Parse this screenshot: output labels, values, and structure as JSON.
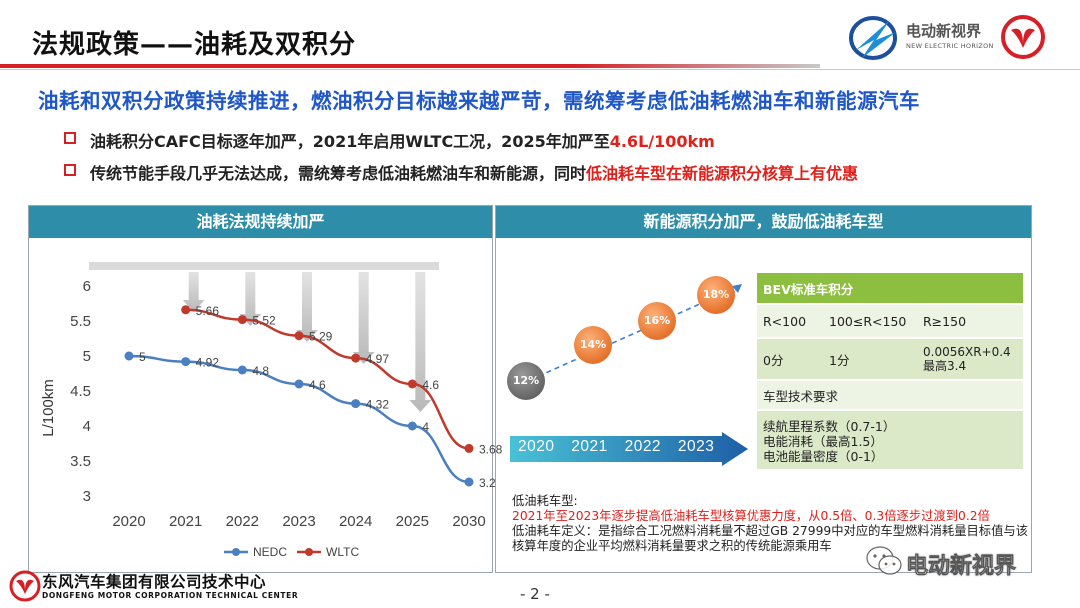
{
  "header": {
    "title": "法规政策——油耗及双积分",
    "ev_logo_text": "电动新视界",
    "ev_logo_sub": "NEW ELECTRIC HORIZON"
  },
  "subtitle": "油耗和双积分政策持续推进，燃油积分目标越来越严苛，需统筹考虑低油耗燃油车和新能源汽车",
  "bullets": [
    {
      "prefix": "油耗积分CAFC目标逐年加严，2021年启用WLTC工况，2025年加严至",
      "highlight": "4.6L/100km"
    },
    {
      "prefix": "传统节能手段几乎无法达成，需统筹考虑低油耗燃油车和新能源，同时",
      "highlight": "低油耗车型在新能源积分核算上有优惠"
    }
  ],
  "left_panel": {
    "title": "油耗法规持续加严"
  },
  "right_panel": {
    "title": "新能源积分加严，鼓励低油耗车型",
    "bubbles": [
      "12%",
      "14%",
      "16%",
      "18%"
    ],
    "years_label": "2020 2021 2022 2023",
    "table": {
      "header": "BEV标准车积分",
      "range_row": [
        "R<100",
        "100≤R<150",
        "R≥150"
      ],
      "value_row": [
        "0分",
        "1分",
        "0.0056XR+0.4\n最高3.4"
      ],
      "req_header": "车型技术要求",
      "req_lines": [
        "续航里程系数（0.7-1）",
        "电能消耗（最高1.5）",
        "电池能量密度（0-1）"
      ]
    },
    "note": {
      "line1": "低油耗车型:",
      "line2_red": "2021年至2023年逐步提高低油耗车型核算优惠力度，从0.5倍、0.3倍逐步过渡到0.2倍",
      "line3": "低油耗车定义：是指综合工况燃料消耗量不超过GB 27999中对应的车型燃料消耗量目标值与该核算年度的企业平均燃料消耗量要求之积的传统能源乘用车"
    }
  },
  "chart_data": {
    "type": "line",
    "categories": [
      "2020",
      "2021",
      "2022",
      "2023",
      "2024",
      "2025",
      "2030"
    ],
    "series": [
      {
        "name": "NEDC",
        "values": [
          5,
          4.92,
          4.8,
          4.6,
          4.32,
          4,
          3.2
        ],
        "labels": [
          "5",
          "4.92",
          "4.8",
          "4.6",
          "4.32",
          "4",
          "3.2"
        ],
        "color": "#4a7fc1"
      },
      {
        "name": "WLTC",
        "values": [
          null,
          5.66,
          5.52,
          5.29,
          4.97,
          4.6,
          3.68
        ],
        "labels": [
          "",
          "5.66",
          "5.52",
          "5.29",
          "4.97",
          "4.6",
          "3.68"
        ],
        "color": "#c0392b"
      }
    ],
    "ylabel": "L/100km",
    "ylim": [
      3,
      6
    ],
    "yticks": [
      "3",
      "3.5",
      "4",
      "4.5",
      "5",
      "5.5",
      "6"
    ],
    "legend": "bottom",
    "grid": false
  },
  "footer": {
    "company_cn": "东风汽车集团有限公司技术中心",
    "company_en": "DONGFENG MOTOR CORPORATION TECHNICAL CENTER",
    "page": "- 2 -",
    "watermark": "电动新视界"
  },
  "colors": {
    "accent_red": "#d61f26",
    "title_blue": "#1f57c9",
    "panel_teal": "#2e8da8",
    "table_green": "#8cbf3f"
  }
}
